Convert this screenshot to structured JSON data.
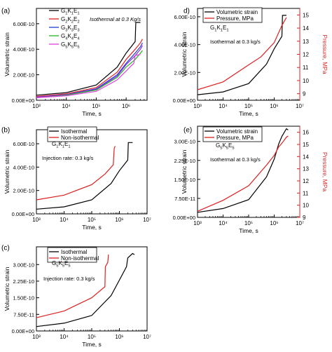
{
  "colors": {
    "black": "#000000",
    "red": "#e02020",
    "blue": "#1f3fd6",
    "purple": "#8a2be2",
    "green": "#22b522",
    "magenta": "#e040e0"
  },
  "chart_data": [
    {
      "panel": "a",
      "panel_label": "(a)",
      "type": "line",
      "x_scale": "log",
      "xlabel": "Time, s",
      "ylabel": "Volumetric strain",
      "xlim": [
        1000,
        5000000
      ],
      "ylim": [
        0,
        7.2e-10
      ],
      "y_ticks": [
        0,
        2e-10,
        4e-10,
        6e-10
      ],
      "y_tick_labels": [
        "0.00E+00",
        "2.00E-10",
        "4.00E-10",
        "6.00E-10"
      ],
      "x_ticks": [
        1000,
        10000,
        100000,
        1000000
      ],
      "x_tick_labels": [
        "10³",
        "10⁴",
        "10⁵",
        "10⁶"
      ],
      "annotations": [
        "Isothermal at 0.3 Kg/s"
      ],
      "legend": [
        {
          "base": "G",
          "s1": "1",
          "k": "K",
          "s2": "1",
          "e": "E",
          "s3": "1",
          "color": "#000000"
        },
        {
          "base": "G",
          "s1": "2",
          "k": "K",
          "s2": "2",
          "e": "E",
          "s3": "2",
          "color": "#e02020"
        },
        {
          "base": "G",
          "s1": "3",
          "k": "K",
          "s2": "3",
          "e": "E",
          "s3": "3",
          "color": "#1f3fd6"
        },
        {
          "base": "G",
          "s1": "4",
          "k": "K",
          "s2": "4",
          "e": "E",
          "s3": "4",
          "color": "#22b522"
        },
        {
          "base": "G",
          "s1": "5",
          "k": "K",
          "s2": "5",
          "e": "E",
          "s3": "5",
          "color": "#e040e0"
        }
      ],
      "series": [
        {
          "color": "#000000",
          "x": [
            1000,
            10000,
            100000,
            500000,
            1000000,
            2000000,
            2100000,
            3000000
          ],
          "y": [
            4e-11,
            6e-11,
            1.2e-10,
            2.6e-10,
            3.7e-10,
            4.6e-10,
            6.1e-10,
            6.1e-10
          ]
        },
        {
          "color": "#e02020",
          "x": [
            1000,
            10000,
            100000,
            500000,
            1000000,
            2000000,
            3000000,
            3500000
          ],
          "y": [
            3e-11,
            5e-11,
            1e-10,
            2.2e-10,
            3.2e-10,
            4e-10,
            4.5e-10,
            4.8e-10
          ]
        },
        {
          "color": "#1f3fd6",
          "x": [
            1000,
            10000,
            100000,
            500000,
            1000000,
            2000000,
            3000000,
            3500000
          ],
          "y": [
            2.5e-11,
            4.5e-11,
            9e-11,
            2e-10,
            2.9e-10,
            3.7e-10,
            4.2e-10,
            4.5e-10
          ]
        },
        {
          "color": "#8a2be2",
          "x": [
            1000,
            10000,
            100000,
            500000,
            1000000,
            2000000,
            3000000,
            3500000
          ],
          "y": [
            2.5e-11,
            4.5e-11,
            8.5e-11,
            1.9e-10,
            2.8e-10,
            3.5e-10,
            4e-10,
            4.3e-10
          ]
        },
        {
          "color": "#22b522",
          "x": [
            1000,
            10000,
            100000,
            500000,
            1000000,
            2000000,
            3000000,
            3500000
          ],
          "y": [
            2e-11,
            4e-11,
            8e-11,
            1.8e-10,
            2.6e-10,
            3.2e-10,
            3.7e-10,
            3.9e-10
          ]
        },
        {
          "color": "#e040e0",
          "x": [
            1000,
            10000,
            100000,
            500000,
            1000000,
            1800000,
            2000000,
            3000000
          ],
          "y": [
            2e-11,
            3.5e-11,
            7e-11,
            1.6e-10,
            2.3e-10,
            2.9e-10,
            3.5e-10,
            3.6e-10
          ]
        }
      ]
    },
    {
      "panel": "b",
      "panel_label": "(b)",
      "type": "line",
      "x_scale": "log",
      "xlabel": "Time, s",
      "ylabel": "Volumetric strain",
      "xlim": [
        1000,
        10000000
      ],
      "ylim": [
        0,
        7.2e-10
      ],
      "y_ticks": [
        0,
        2e-10,
        4e-10,
        6e-10
      ],
      "y_tick_labels": [
        "0.00E+00",
        "2.00E-10",
        "4.00E-10",
        "6.00E-10"
      ],
      "x_ticks": [
        1000,
        10000,
        100000,
        1000000,
        10000000
      ],
      "x_tick_labels": [
        "10³",
        "10⁴",
        "10⁵",
        "10⁶",
        "10⁷"
      ],
      "label_parts": {
        "base": "G",
        "s1": "1",
        "k": "K",
        "s2": "1",
        "e": "E",
        "s3": "1"
      },
      "annotations": [
        "Injection rate: 0.3 kg/s"
      ],
      "legend": [
        {
          "name": "Isothermal",
          "color": "#000000"
        },
        {
          "name": "Non-isothermal",
          "color": "#e02020"
        }
      ],
      "series": [
        {
          "name": "Isothermal",
          "color": "#000000",
          "x": [
            1000,
            10000,
            100000,
            500000,
            1000000,
            2000000,
            2100000,
            3000000
          ],
          "y": [
            4e-11,
            6e-11,
            1.2e-10,
            2.6e-10,
            3.7e-10,
            4.6e-10,
            6.1e-10,
            6.1e-10
          ]
        },
        {
          "name": "Non-isothermal",
          "color": "#e02020",
          "x": [
            1000,
            10000,
            100000,
            300000,
            600000,
            650000,
            700000
          ],
          "y": [
            1.2e-10,
            1.6e-10,
            2.5e-10,
            3.4e-10,
            4.2e-10,
            5.6e-10,
            5.8e-10
          ]
        }
      ]
    },
    {
      "panel": "c",
      "panel_label": "(c)",
      "type": "line",
      "x_scale": "log",
      "xlabel": "Time, s",
      "ylabel": "Volumetric strain",
      "xlim": [
        1000,
        10000000
      ],
      "ylim": [
        0,
        3.8e-10
      ],
      "y_ticks": [
        0,
        7.5e-11,
        1.5e-10,
        2.25e-10,
        3e-10
      ],
      "y_tick_labels": [
        "0.00E+00",
        "7.50E-11",
        "1.50E-10",
        "2.25E-10",
        "3.00E-10"
      ],
      "x_ticks": [
        1000,
        10000,
        100000,
        1000000,
        10000000
      ],
      "x_tick_labels": [
        "10³",
        "10⁴",
        "10⁵",
        "10⁶",
        "10⁷"
      ],
      "label_parts": {
        "base": "G",
        "s1": "5",
        "k": "K",
        "s2": "5",
        "e": "E",
        "s3": "5"
      },
      "annotations": [
        "Injection rate: 0.3 kg/s"
      ],
      "legend": [
        {
          "name": "Isothermal",
          "color": "#000000"
        },
        {
          "name": "Non-isothermal",
          "color": "#e02020"
        }
      ],
      "series": [
        {
          "name": "Isothermal",
          "color": "#000000",
          "x": [
            1000,
            10000,
            100000,
            500000,
            1000000,
            1800000,
            2000000,
            3000000,
            3500000
          ],
          "y": [
            2e-11,
            3.5e-11,
            7e-11,
            1.6e-10,
            2.3e-10,
            2.9e-10,
            3.3e-10,
            3.5e-10,
            3.45e-10
          ]
        },
        {
          "name": "Non-isothermal",
          "color": "#e02020",
          "x": [
            1000,
            10000,
            100000,
            300000,
            310000,
            380000,
            400000
          ],
          "y": [
            6e-11,
            9e-11,
            1.5e-10,
            2e-10,
            2.9e-10,
            3.1e-10,
            3.45e-10
          ]
        }
      ]
    },
    {
      "panel": "d",
      "panel_label": "d)",
      "type": "line",
      "x_scale": "log",
      "xlabel": "Time, s",
      "ylabel": "Volumetric Strain",
      "ylabel_right": "Pressure, MPa",
      "xlim": [
        1000,
        10000000
      ],
      "ylim": [
        0,
        6.6e-10
      ],
      "ylim_right": [
        8.5,
        15.5
      ],
      "y_ticks": [
        0,
        2e-10,
        4e-10,
        6e-10
      ],
      "y_tick_labels": [
        "0.00E+00",
        "2.00E-10",
        "4.00E-10",
        "6.00E-10"
      ],
      "y_right_ticks": [
        9,
        10,
        11,
        12,
        13,
        14,
        15
      ],
      "y_right_tick_labels": [
        "9",
        "10",
        "11",
        "12",
        "13",
        "14",
        "15"
      ],
      "x_ticks": [
        1000,
        10000,
        100000,
        1000000,
        10000000
      ],
      "x_tick_labels": [
        "10³",
        "10⁴",
        "10⁵",
        "10⁶",
        "10⁷"
      ],
      "label_parts": {
        "base": "G",
        "s1": "1",
        "k": "K",
        "s2": "1",
        "e": "E",
        "s3": "1"
      },
      "annotations": [
        "Isothermal at 0.3 kg/s"
      ],
      "legend": [
        {
          "name": "Volumetric strain",
          "color": "#000000"
        },
        {
          "name": "Pressure, MPa",
          "color": "#e02020"
        }
      ],
      "series": [
        {
          "name": "Volumetric strain",
          "axis": "left",
          "color": "#000000",
          "x": [
            1000,
            10000,
            100000,
            500000,
            1000000,
            2000000,
            2100000,
            3000000
          ],
          "y": [
            4e-11,
            6e-11,
            1.2e-10,
            2.6e-10,
            3.7e-10,
            4.6e-10,
            6.1e-10,
            6.1e-10
          ]
        },
        {
          "name": "Pressure, MPa",
          "axis": "right",
          "color": "#e02020",
          "x": [
            1000,
            10000,
            100000,
            300000,
            1000000,
            2000000,
            3000000
          ],
          "y": [
            9.3,
            9.9,
            11.2,
            11.8,
            12.9,
            14.2,
            14.8
          ]
        }
      ]
    },
    {
      "panel": "e",
      "panel_label": "(e)",
      "type": "line",
      "x_scale": "log",
      "xlabel": "Time, s",
      "ylabel": "Volumetric strain",
      "ylabel_right": "Pressure, MPa",
      "xlim": [
        1000,
        10000000
      ],
      "ylim": [
        0,
        3.6e-10
      ],
      "ylim_right": [
        9,
        16.5
      ],
      "y_ticks": [
        0,
        7.5e-11,
        1.5e-10,
        2.25e-10,
        3e-10
      ],
      "y_tick_labels": [
        "0.00E+00",
        "7.50E-11",
        "1.50E-10",
        "2.25E-10",
        "3.00E-10"
      ],
      "y_right_ticks": [
        9,
        10,
        11,
        12,
        13,
        14,
        15,
        16
      ],
      "y_right_tick_labels": [
        "9",
        "10",
        "11",
        "12",
        "13",
        "14",
        "15",
        "16"
      ],
      "x_ticks": [
        1000,
        10000,
        100000,
        1000000,
        10000000
      ],
      "x_tick_labels": [
        "10³",
        "10⁴",
        "10⁵",
        "10⁶",
        "10⁷"
      ],
      "label_parts": {
        "base": "G",
        "s1": "5",
        "k": "K",
        "s2": "5",
        "e": "E",
        "s3": "5"
      },
      "annotations": [
        "Isothermal at 0.3 kg/s"
      ],
      "legend": [
        {
          "name": "Volumetric strain",
          "color": "#000000"
        },
        {
          "name": "Pressure, MPa",
          "color": "#e02020"
        }
      ],
      "series": [
        {
          "name": "Volumetric strain",
          "axis": "left",
          "color": "#000000",
          "x": [
            1000,
            10000,
            100000,
            500000,
            1000000,
            1500000,
            2000000,
            3000000,
            3500000
          ],
          "y": [
            2e-11,
            3.5e-11,
            7e-11,
            1.6e-10,
            2.3e-10,
            2.9e-10,
            3.2e-10,
            3.5e-10,
            3.45e-10
          ]
        },
        {
          "name": "Pressure, MPa",
          "axis": "right",
          "color": "#e02020",
          "x": [
            1000,
            10000,
            100000,
            500000,
            1000000,
            1500000,
            2000000,
            3000000,
            3500000
          ],
          "y": [
            9.5,
            10.4,
            11.6,
            13.3,
            14.1,
            14.8,
            15.1,
            15.6,
            15.7
          ]
        }
      ]
    }
  ]
}
